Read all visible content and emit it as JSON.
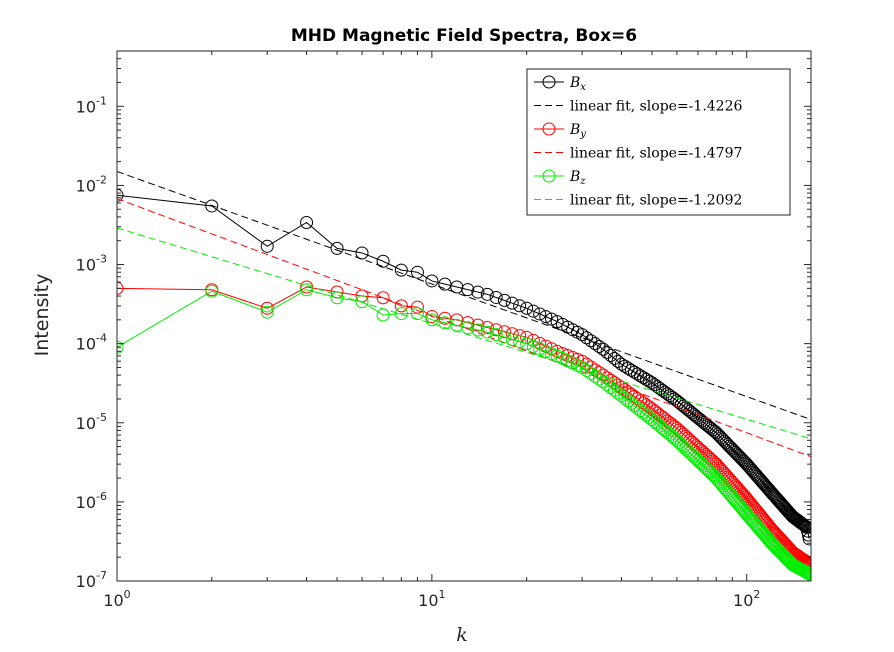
{
  "chart_data": {
    "type": "line",
    "title": "MHD Magnetic Field Spectra, Box=6",
    "xlabel": "k",
    "ylabel": "Intensity",
    "xscale": "log",
    "yscale": "log",
    "xlim": [
      1,
      160
    ],
    "ylim": [
      1e-07,
      0.5
    ],
    "xticks": [
      {
        "base": "10",
        "exp": "0"
      },
      {
        "base": "10",
        "exp": "1"
      },
      {
        "base": "10",
        "exp": "2"
      }
    ],
    "yticks": [
      {
        "base": "10",
        "exp": "-7"
      },
      {
        "base": "10",
        "exp": "-6"
      },
      {
        "base": "10",
        "exp": "-5"
      },
      {
        "base": "10",
        "exp": "-4"
      },
      {
        "base": "10",
        "exp": "-3"
      },
      {
        "base": "10",
        "exp": "-2"
      },
      {
        "base": "10",
        "exp": "-1"
      }
    ],
    "grid": false,
    "legend_position": "top-right",
    "series": [
      {
        "name": "B_x",
        "label_base": "B",
        "label_sub": "x",
        "color": "#000000",
        "marker": "circle",
        "anchors": [
          [
            1,
            0.0075
          ],
          [
            2,
            0.0055
          ],
          [
            3,
            0.0017
          ],
          [
            4,
            0.0034
          ],
          [
            5,
            0.0016
          ],
          [
            6,
            0.0014
          ],
          [
            7,
            0.0011
          ],
          [
            8,
            0.00085
          ],
          [
            9,
            0.0008
          ],
          [
            10,
            0.00062
          ],
          [
            12,
            0.00052
          ],
          [
            15,
            0.00042
          ],
          [
            20,
            0.00028
          ],
          [
            25,
            0.00019
          ],
          [
            30,
            0.00013
          ],
          [
            35,
            8.5e-05
          ],
          [
            40,
            5.5e-05
          ],
          [
            50,
            3.2e-05
          ],
          [
            60,
            1.9e-05
          ],
          [
            80,
            7.5e-06
          ],
          [
            100,
            3e-06
          ],
          [
            120,
            1.3e-06
          ],
          [
            140,
            6.5e-07
          ],
          [
            155,
            4.8e-07
          ],
          [
            158,
            3.4e-07
          ]
        ]
      },
      {
        "name": "linear fit, slope=-1.4226",
        "color": "#000000",
        "dashed": true,
        "fit": {
          "slope": -1.4226,
          "intercept_at_k1": 0.015,
          "x_range": [
            1,
            160
          ]
        }
      },
      {
        "name": "B_y",
        "label_base": "B",
        "label_sub": "y",
        "color": "#ff0000",
        "marker": "circle",
        "anchors": [
          [
            1,
            0.0005
          ],
          [
            2,
            0.00048
          ],
          [
            3,
            0.00028
          ],
          [
            4,
            0.00052
          ],
          [
            5,
            0.00045
          ],
          [
            6,
            0.0004
          ],
          [
            7,
            0.00038
          ],
          [
            8,
            0.0003
          ],
          [
            9,
            0.00029
          ],
          [
            10,
            0.00022
          ],
          [
            12,
            0.0002
          ],
          [
            15,
            0.00016
          ],
          [
            20,
            0.00012
          ],
          [
            25,
            8e-05
          ],
          [
            30,
            6e-05
          ],
          [
            35,
            4e-05
          ],
          [
            40,
            2.8e-05
          ],
          [
            50,
            1.5e-05
          ],
          [
            60,
            8.5e-06
          ],
          [
            80,
            3e-06
          ],
          [
            100,
            1.1e-06
          ],
          [
            120,
            4.5e-07
          ],
          [
            140,
            2.3e-07
          ],
          [
            160,
            1.6e-07
          ]
        ]
      },
      {
        "name": "linear fit, slope=-1.4797",
        "color": "#ff0000",
        "dashed": true,
        "fit": {
          "slope": -1.4797,
          "intercept_at_k1": 0.0068,
          "x_range": [
            1,
            160
          ]
        }
      },
      {
        "name": "B_z",
        "label_base": "B",
        "label_sub": "z",
        "color": "#00ee00",
        "marker": "circle",
        "anchors": [
          [
            1,
            9e-05
          ],
          [
            2,
            0.00046
          ],
          [
            3,
            0.00025
          ],
          [
            4,
            0.00048
          ],
          [
            5,
            0.00038
          ],
          [
            6,
            0.00034
          ],
          [
            7,
            0.00023
          ],
          [
            8,
            0.00024
          ],
          [
            9,
            0.00024
          ],
          [
            10,
            0.0002
          ],
          [
            12,
            0.00017
          ],
          [
            15,
            0.00014
          ],
          [
            20,
            0.0001
          ],
          [
            25,
            7e-05
          ],
          [
            30,
            5e-05
          ],
          [
            35,
            3.3e-05
          ],
          [
            40,
            2.2e-05
          ],
          [
            50,
            1.1e-05
          ],
          [
            60,
            6e-06
          ],
          [
            80,
            2e-06
          ],
          [
            100,
            7e-07
          ],
          [
            120,
            3e-07
          ],
          [
            140,
            1.6e-07
          ],
          [
            160,
            1.2e-07
          ]
        ]
      },
      {
        "name": "linear fit, slope=-1.2092",
        "color": "#00ee00",
        "dashed": true,
        "fit": {
          "slope": -1.2092,
          "intercept_at_k1": 0.0029,
          "x_range": [
            1,
            160
          ]
        }
      }
    ]
  }
}
